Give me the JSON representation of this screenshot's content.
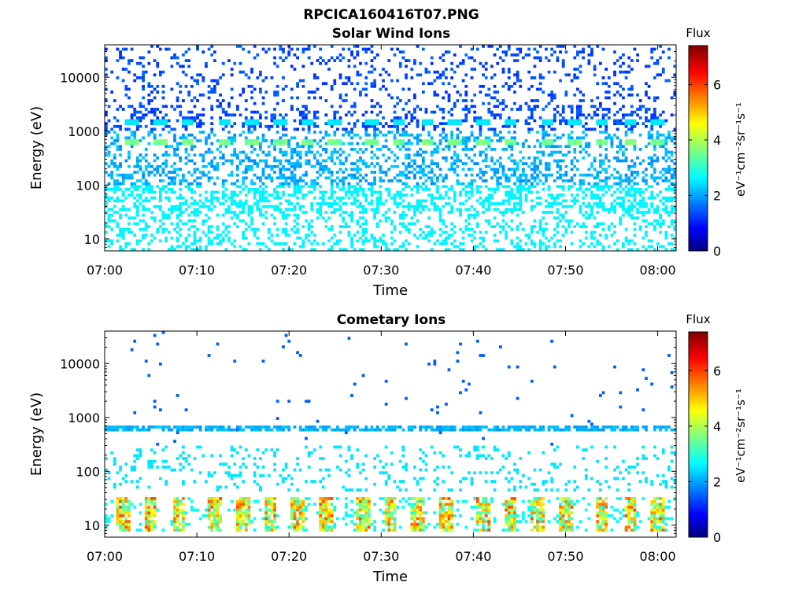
{
  "figure": {
    "suptitle": "RPCICA160416T07.PNG"
  },
  "chart_data": [
    {
      "type": "heatmap",
      "title": "Solar Wind Ions",
      "xlabel": "Time",
      "ylabel": "Energy (eV)",
      "y_scale": "log",
      "ylim": [
        6,
        40000
      ],
      "xlim": [
        "07:00",
        "08:02"
      ],
      "x_ticks": [
        "07:00",
        "07:10",
        "07:20",
        "07:30",
        "07:40",
        "07:50",
        "08:00"
      ],
      "y_ticks": [
        {
          "value": 10,
          "label": "10"
        },
        {
          "value": 100,
          "label": "100"
        },
        {
          "value": 1000,
          "label": "1000"
        },
        {
          "value": 10000,
          "label": "10000"
        }
      ],
      "colorbar": {
        "title": "Flux",
        "label": "eV⁻¹cm⁻²sr⁻¹s⁻¹",
        "range": [
          0,
          7.4
        ],
        "ticks": [
          0,
          2,
          4,
          6
        ],
        "colormap": "jet"
      },
      "beam_energy_eV": 650,
      "beam_flux": 3.3,
      "secondary_band_energy_eV": 1450,
      "secondary_band_flux": 2.6,
      "beam_times": [
        "07:03",
        "07:06",
        "07:09",
        "07:13",
        "07:16",
        "07:19",
        "07:22",
        "07:25",
        "07:29",
        "07:32",
        "07:35",
        "07:38",
        "07:41",
        "07:44",
        "07:48",
        "07:51",
        "07:54",
        "07:57",
        "08:00"
      ]
    },
    {
      "type": "heatmap",
      "title": "Cometary Ions",
      "xlabel": "Time",
      "ylabel": "Energy (eV)",
      "y_scale": "log",
      "ylim": [
        6,
        40000
      ],
      "xlim": [
        "07:00",
        "08:02"
      ],
      "x_ticks": [
        "07:00",
        "07:10",
        "07:20",
        "07:30",
        "07:40",
        "07:50",
        "08:00"
      ],
      "y_ticks": [
        {
          "value": 10,
          "label": "10"
        },
        {
          "value": 100,
          "label": "100"
        },
        {
          "value": 1000,
          "label": "1000"
        },
        {
          "value": 10000,
          "label": "10000"
        }
      ],
      "colorbar": {
        "title": "Flux",
        "label": "eV⁻¹cm⁻²sr⁻¹s⁻¹",
        "range": [
          0,
          7.4
        ],
        "ticks": [
          0,
          2,
          4,
          6
        ],
        "colormap": "jet"
      },
      "beam_energy_eV": 640,
      "beam_flux": 2.0,
      "low_energy_bursts_eV": [
        8,
        35
      ],
      "low_energy_burst_peak_flux": 6.0,
      "burst_times": [
        "07:02",
        "07:05",
        "07:08",
        "07:12",
        "07:15",
        "07:18",
        "07:21",
        "07:24",
        "07:28",
        "07:31",
        "07:34",
        "07:37",
        "07:41",
        "07:44",
        "07:47",
        "07:50",
        "07:54",
        "07:57",
        "08:00"
      ]
    }
  ]
}
